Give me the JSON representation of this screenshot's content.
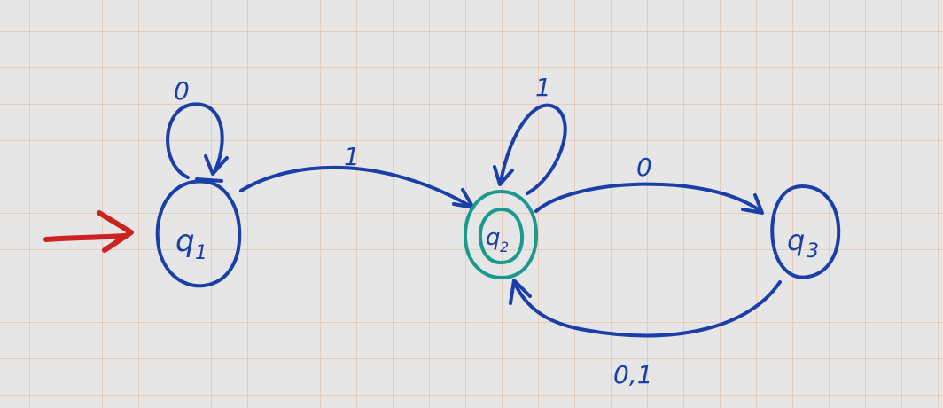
{
  "colors": {
    "ink": "#1a3fa8",
    "accept": "#1a9a8e",
    "start_arrow": "#cc2222",
    "paper": "#e6e6e6",
    "grid": "#e8b496"
  },
  "states": {
    "q1": {
      "label_main": "q",
      "label_sub": "1",
      "accepting": false,
      "start": true
    },
    "q2": {
      "label_main": "q",
      "label_sub": "2",
      "accepting": true,
      "start": false
    },
    "q3": {
      "label_main": "q",
      "label_sub": "3",
      "accepting": false,
      "start": false
    }
  },
  "transitions": {
    "q1_loop": "0",
    "q1_to_q2": "1",
    "q2_loop": "1",
    "q2_to_q3": "0",
    "q3_to_q2": "0,1"
  }
}
